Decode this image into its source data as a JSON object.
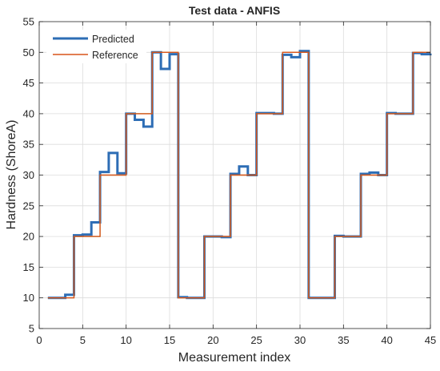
{
  "chart_data": {
    "type": "line",
    "title": "Test data - ANFIS",
    "xlabel": "Measurement index",
    "ylabel": "Hardness (ShoreA)",
    "xlim": [
      0,
      45
    ],
    "ylim": [
      5,
      55
    ],
    "xticks": [
      0,
      5,
      10,
      15,
      20,
      25,
      30,
      35,
      40,
      45
    ],
    "yticks": [
      5,
      10,
      15,
      20,
      25,
      30,
      35,
      40,
      45,
      50,
      55
    ],
    "grid": true,
    "legend_position": "top-left",
    "step": true,
    "series": [
      {
        "name": "Predicted",
        "color": "#2d6db5",
        "x": [
          1,
          2,
          3,
          4,
          5,
          6,
          7,
          8,
          9,
          10,
          11,
          12,
          13,
          14,
          15,
          16,
          17,
          18,
          19,
          20,
          21,
          22,
          23,
          24,
          25,
          26,
          27,
          28,
          29,
          30,
          31,
          32,
          33,
          34,
          35,
          36,
          37,
          38,
          39,
          40,
          41,
          42,
          43,
          44,
          45
        ],
        "y": [
          10,
          10,
          10.5,
          20.2,
          20.3,
          22.3,
          30.5,
          33.6,
          30.3,
          40,
          39,
          37.9,
          50,
          47.3,
          49.7,
          10.1,
          10,
          10,
          20,
          20,
          19.9,
          30.2,
          31.4,
          30,
          40.1,
          40.1,
          40,
          49.6,
          49.2,
          50.2,
          10,
          10,
          10,
          20.1,
          20,
          20,
          30.2,
          30.4,
          30,
          40.1,
          40,
          40,
          49.9,
          49.7,
          49.8
        ]
      },
      {
        "name": "Reference",
        "color": "#d9541a",
        "x": [
          1,
          2,
          3,
          4,
          5,
          6,
          7,
          8,
          9,
          10,
          11,
          12,
          13,
          14,
          15,
          16,
          17,
          18,
          19,
          20,
          21,
          22,
          23,
          24,
          25,
          26,
          27,
          28,
          29,
          30,
          31,
          32,
          33,
          34,
          35,
          36,
          37,
          38,
          39,
          40,
          41,
          42,
          43,
          44,
          45
        ],
        "y": [
          10,
          10,
          10,
          20,
          20,
          20,
          30,
          30,
          30,
          40,
          40,
          40,
          50,
          50,
          50,
          10,
          10,
          10,
          20,
          20,
          20,
          30,
          30,
          30,
          40,
          40,
          40,
          50,
          50,
          50,
          10,
          10,
          10,
          20,
          20,
          20,
          30,
          30,
          30,
          40,
          40,
          40,
          50,
          50,
          50
        ]
      },
      {
        "name": "",
        "color": "#7aa23a",
        "x": [
          1,
          2,
          3,
          4,
          5,
          6,
          7,
          8,
          9,
          10,
          11,
          12,
          13,
          14,
          15,
          16,
          17,
          18,
          19,
          20,
          21,
          22,
          23,
          24,
          25,
          26,
          27,
          28,
          29,
          30,
          31,
          32,
          33,
          34,
          35,
          36,
          37,
          38,
          39,
          40,
          41,
          42,
          43,
          44,
          45
        ],
        "y": [
          10,
          10,
          10,
          20,
          20,
          20,
          30,
          30,
          30,
          40,
          40,
          40,
          50,
          50,
          50,
          10,
          10,
          10,
          20,
          20,
          20,
          30,
          30,
          30,
          40,
          40,
          40,
          50,
          50,
          50,
          10,
          10,
          10,
          20,
          20,
          20,
          30,
          30,
          30,
          40,
          40,
          40,
          50,
          50,
          50
        ]
      }
    ]
  }
}
